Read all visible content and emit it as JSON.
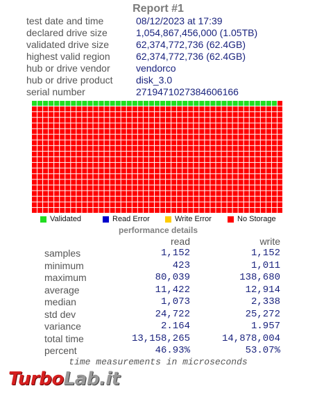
{
  "report": {
    "title": "Report #1",
    "fields": [
      {
        "label": "test date and time",
        "value": "08/12/2023  at  17:39"
      },
      {
        "label": "declared drive size",
        "value": "1,054,867,456,000 (1.05TB)"
      },
      {
        "label": "validated drive size",
        "value": "62,374,772,736 (62.4GB)"
      },
      {
        "label": "highest valid region",
        "value": "62,374,772,736 (62.4GB)"
      },
      {
        "label": "hub or drive vendor",
        "value": "vendorco"
      },
      {
        "label": "hub or drive product",
        "value": "disk_3.0"
      },
      {
        "label": "serial number",
        "value": "2719471027384606166"
      }
    ]
  },
  "storage_map": {
    "columns": 45,
    "rows": 20,
    "validated_fraction_first_row": 0.978,
    "colors": {
      "validated": "#22dd22",
      "read_error": "#0000cc",
      "write_error": "#ffcc00",
      "no_storage": "#ff0000",
      "gridline": "#ffffff"
    }
  },
  "legend": [
    {
      "label": "Validated",
      "color": "#22dd22"
    },
    {
      "label": "Read Error",
      "color": "#0000cc"
    },
    {
      "label": "Write Error",
      "color": "#ffcc00"
    },
    {
      "label": "No Storage",
      "color": "#ff0000"
    }
  ],
  "performance": {
    "title": "performance details",
    "columns": {
      "read": "read",
      "write": "write"
    },
    "rows": [
      {
        "label": "samples",
        "read": "1,152",
        "write": "1,152"
      },
      {
        "label": "minimum",
        "read": "423",
        "write": "1,011"
      },
      {
        "label": "maximum",
        "read": "80,039",
        "write": "138,680"
      },
      {
        "label": "average",
        "read": "11,422",
        "write": "12,914"
      },
      {
        "label": "median",
        "read": "1,073",
        "write": "2,338"
      },
      {
        "label": "std dev",
        "read": "24,722",
        "write": "25,272"
      },
      {
        "label": "variance",
        "read": "2.164",
        "write": "1.957"
      },
      {
        "label": "total time",
        "read": "13,158,265",
        "write": "14,878,004"
      },
      {
        "label": "percent",
        "read": "46.93%",
        "write": "53.07%"
      }
    ],
    "footnote": "time measurements in microseconds"
  },
  "watermark": {
    "part1": "Turbo",
    "part2": "Lab.it"
  }
}
